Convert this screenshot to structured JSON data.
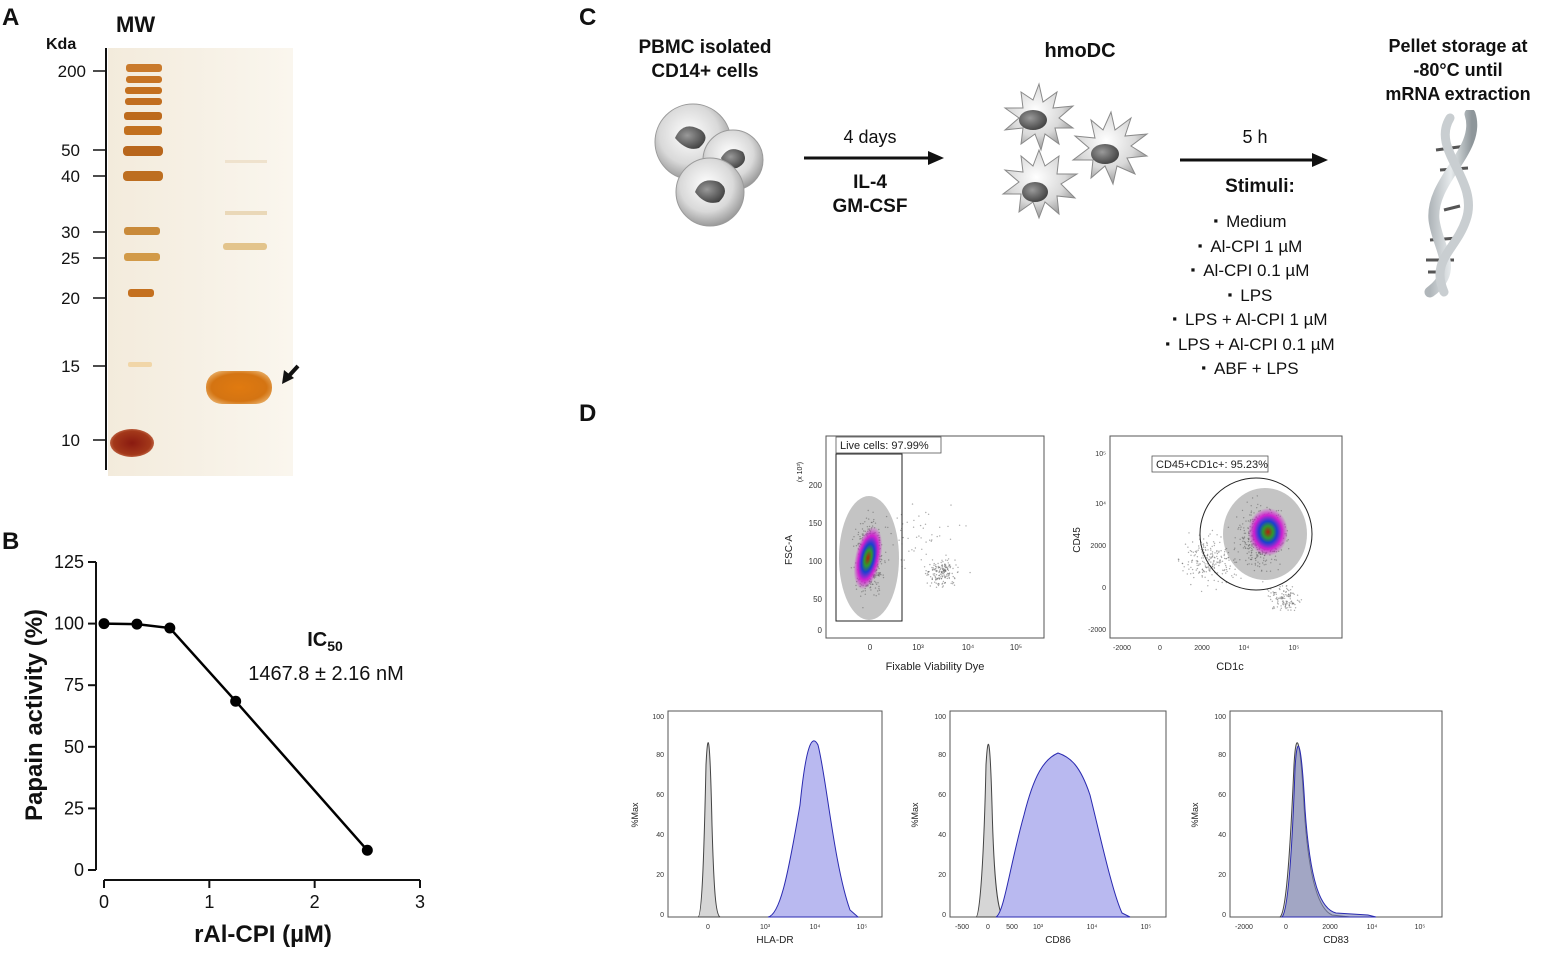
{
  "panels": {
    "a": {
      "letter": "A"
    },
    "b": {
      "letter": "B"
    },
    "c": {
      "letter": "C"
    },
    "d": {
      "letter": "D"
    }
  },
  "gel": {
    "mw_label": "MW",
    "unit_label": "Kda",
    "markers": [
      200,
      50,
      40,
      30,
      25,
      20,
      15,
      10
    ]
  },
  "chart_data": {
    "type": "line",
    "x": [
      0,
      0.3125,
      0.625,
      1.25,
      2.5
    ],
    "y": [
      100.0,
      99.8,
      98.2,
      68.5,
      8.0
    ],
    "xlabel": "rAl-CPI (µM)",
    "ylabel": "Papain activity (%)",
    "xlim": [
      0,
      3
    ],
    "ylim": [
      0,
      125
    ],
    "xticks": [
      0,
      1,
      2,
      3
    ],
    "yticks": [
      0,
      25,
      50,
      75,
      100,
      125
    ],
    "annotation": {
      "title": "IC",
      "subscript": "50",
      "value": "1467.8 ± 2.16 nM"
    },
    "colors": {
      "line": "#000000",
      "marker": "#000000"
    }
  },
  "workflow": {
    "start_title_line1": "PBMC isolated",
    "start_title_line2": "CD14+ cells",
    "step1_duration": "4 days",
    "step1_factor1": "IL-4",
    "step1_factor2": "GM-CSF",
    "middle_title": "hmoDC",
    "step2_duration": "5 h",
    "stimuli_title": "Stimuli:",
    "stimuli": [
      "Medium",
      "Al-CPI 1 µM",
      "Al-CPI 0.1 µM",
      "LPS",
      "LPS + Al-CPI 1 µM",
      "LPS + Al-CPI 0.1 µM",
      "ABF + LPS"
    ],
    "end_title_line1": "Pellet storage at",
    "end_title_line2": "-80°C until",
    "end_title_line3": "mRNA extraction"
  },
  "flow": {
    "plot1": {
      "gate_label": "Live cells: 97.99%",
      "ylabel": "FSC-A",
      "yscale": "(x 10³)",
      "xlabel": "Fixable Viability Dye",
      "yticks": [
        "0",
        "50",
        "100",
        "150",
        "200"
      ],
      "xticks": [
        "0",
        "10³",
        "10⁴",
        "10⁵"
      ]
    },
    "plot2": {
      "gate_label": "CD45+CD1c+: 95.23%",
      "ylabel": "CD45",
      "xlabel": "CD1c",
      "yticks": [
        "-2000",
        "0",
        "2000",
        "10⁴",
        "10⁵"
      ],
      "xticks": [
        "-2000",
        "0",
        "2000",
        "10⁴",
        "10⁵"
      ]
    },
    "histograms": [
      {
        "xlabel": "HLA-DR",
        "ylabel": "%Max",
        "yticks": [
          "0",
          "20",
          "40",
          "60",
          "80",
          "100"
        ],
        "xticks": [
          "0",
          "10³",
          "10⁴",
          "10⁵"
        ]
      },
      {
        "xlabel": "CD86",
        "ylabel": "%Max",
        "yticks": [
          "0",
          "20",
          "40",
          "60",
          "80",
          "100"
        ],
        "xticks": [
          "-500",
          "0",
          "500",
          "10³",
          "10⁴",
          "10⁵"
        ]
      },
      {
        "xlabel": "CD83",
        "ylabel": "%Max",
        "yticks": [
          "0",
          "20",
          "40",
          "60",
          "80",
          "100"
        ],
        "xticks": [
          "-2000",
          "0",
          "2000",
          "10⁴",
          "10⁵"
        ]
      }
    ],
    "colors": {
      "fill": "#b9b9f0",
      "stroke": "#2a2ab0",
      "control": "#cfcfcf"
    }
  }
}
